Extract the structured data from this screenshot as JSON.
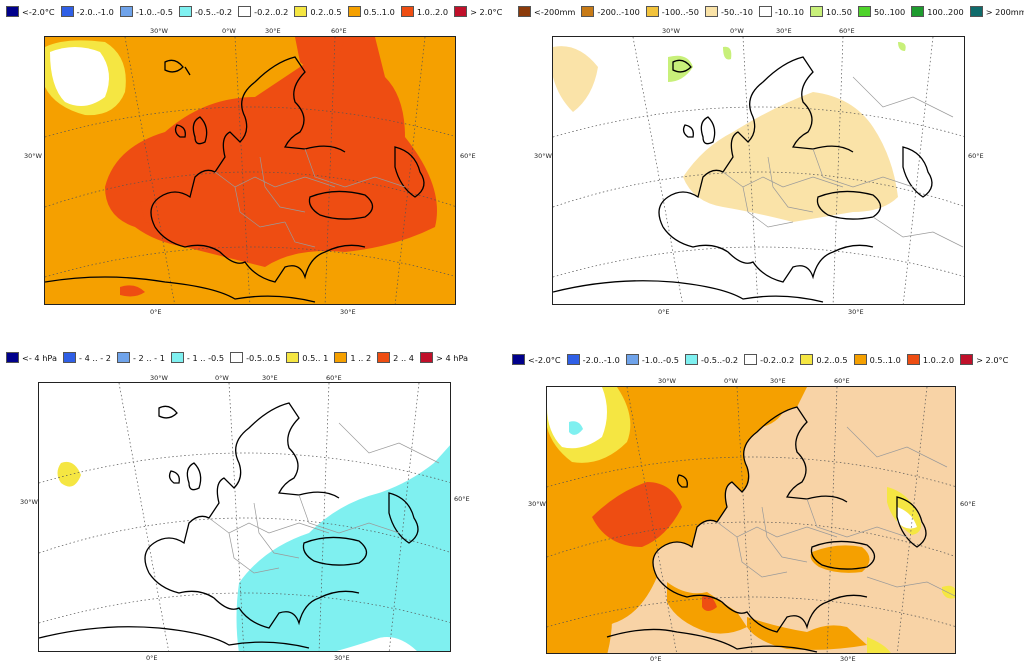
{
  "panels": [
    {
      "id": "temperature-anomaly-top",
      "legend": [
        {
          "label": "<-2.0°C",
          "color": "#00008b"
        },
        {
          "label": "-2.0..-1.0",
          "color": "#2f5fe6"
        },
        {
          "label": "-1.0..-0.5",
          "color": "#6fa3ea"
        },
        {
          "label": "-0.5..-0.2",
          "color": "#7ff0f0"
        },
        {
          "label": "-0.2..0.2",
          "color": "#ffffff"
        },
        {
          "label": "0.2..0.5",
          "color": "#f5e642"
        },
        {
          "label": "0.5..1.0",
          "color": "#f5a000"
        },
        {
          "label": "1.0..2.0",
          "color": "#ee4d12"
        },
        {
          "label": "> 2.0°C",
          "color": "#c0102a"
        }
      ],
      "lon_labels_top": [
        "30°W",
        "0°W",
        "30°E",
        "60°E"
      ],
      "lon_labels_bottom": [
        "0°E",
        "30°E"
      ],
      "lat_label_left": "30°W",
      "lat_label_right": "60°E"
    },
    {
      "id": "precipitation-anomaly-top",
      "legend": [
        {
          "label": "<-200mm",
          "color": "#8b3a0a"
        },
        {
          "label": "-200..-100",
          "color": "#c77a16"
        },
        {
          "label": "-100..-50",
          "color": "#f2c33c"
        },
        {
          "label": "-50..-10",
          "color": "#fae3a8"
        },
        {
          "label": "-10..10",
          "color": "#ffffff"
        },
        {
          "label": "10..50",
          "color": "#c8f07a"
        },
        {
          "label": "50..100",
          "color": "#4ed32a"
        },
        {
          "label": "100..200",
          "color": "#1e9b2e"
        },
        {
          "label": "> 200mm",
          "color": "#0f6b6b"
        }
      ],
      "lon_labels_top": [
        "30°W",
        "0°W",
        "30°E",
        "60°E"
      ],
      "lon_labels_bottom": [
        "0°E",
        "30°E"
      ],
      "lat_label_left": "30°W",
      "lat_label_right": "60°E"
    },
    {
      "id": "pressure-anomaly-bottom",
      "legend": [
        {
          "label": "<- 4 hPa",
          "color": "#00008b"
        },
        {
          "label": "- 4 .. - 2",
          "color": "#2f5fe6"
        },
        {
          "label": "- 2 .. - 1",
          "color": "#6fa3ea"
        },
        {
          "label": "- 1 .. -0.5",
          "color": "#7ff0f0"
        },
        {
          "label": "-0.5..0.5",
          "color": "#ffffff"
        },
        {
          "label": "0.5.. 1",
          "color": "#f5e642"
        },
        {
          "label": "1 .. 2",
          "color": "#f5a000"
        },
        {
          "label": "2 .. 4",
          "color": "#ee4d12"
        },
        {
          "label": ">  4 hPa",
          "color": "#c0102a"
        }
      ],
      "lon_labels_top": [
        "30°W",
        "0°W",
        "30°E",
        "60°E"
      ],
      "lon_labels_bottom": [
        "0°E",
        "30°E"
      ],
      "lat_label_left": "30°W",
      "lat_label_right": "60°E"
    },
    {
      "id": "sst-anomaly-bottom",
      "legend": [
        {
          "label": "<-2.0°C",
          "color": "#00008b"
        },
        {
          "label": "-2.0..-1.0",
          "color": "#2f5fe6"
        },
        {
          "label": "-1.0..-0.5",
          "color": "#6fa3ea"
        },
        {
          "label": "-0.5..-0.2",
          "color": "#7ff0f0"
        },
        {
          "label": "-0.2..0.2",
          "color": "#ffffff"
        },
        {
          "label": "0.2..0.5",
          "color": "#f5e642"
        },
        {
          "label": "0.5..1.0",
          "color": "#f5a000"
        },
        {
          "label": "1.0..2.0",
          "color": "#ee4d12"
        },
        {
          "label": "> 2.0°C",
          "color": "#c0102a"
        }
      ],
      "lon_labels_top": [
        "30°W",
        "0°W",
        "30°E",
        "60°E"
      ],
      "lon_labels_bottom": [
        "0°E",
        "30°E"
      ],
      "lat_label_left": "30°W",
      "lat_label_right": "60°E"
    }
  ],
  "colors": {
    "land_outline": "#000000",
    "border": "#9a9a9a",
    "graticule": "#555555",
    "land_fill_sst": "#f8d3a6"
  }
}
